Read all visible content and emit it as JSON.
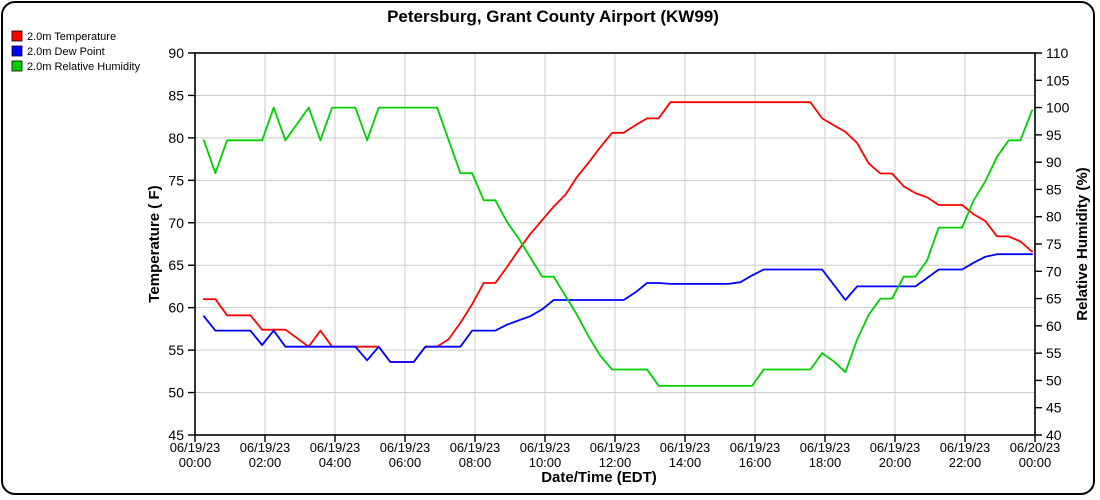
{
  "title": "Petersburg, Grant County Airport (KW99)",
  "legend": [
    {
      "key": "temperature",
      "label": "2.0m Temperature",
      "color": "#ff0000"
    },
    {
      "key": "dew-point",
      "label": "2.0m Dew Point",
      "color": "#0000ff"
    },
    {
      "key": "relative-humidity",
      "label": "2.0m Relative Humidity",
      "color": "#00d000"
    }
  ],
  "colors": {
    "temperature": "#ff0000",
    "dew_point": "#0000ff",
    "relative_humidity": "#00d000",
    "gridline": "#cccccc",
    "frame": "#000000"
  },
  "chart_data": {
    "type": "line",
    "title": "Petersburg, Grant County Airport (KW99)",
    "xlabel": "Date/Time (EDT)",
    "ylabel_left": "Temperature ( F)",
    "ylabel_right": "Relative Humidity (%)",
    "grid": true,
    "legend_position": "top-left",
    "y_left": {
      "min": 45,
      "max": 90,
      "step": 5
    },
    "y_right": {
      "min": 40,
      "max": 110,
      "step": 5
    },
    "x_range_hours": [
      0,
      24
    ],
    "x_tick_step_hours": 2,
    "x_ticks": [
      {
        "date": "06/19/23",
        "time": "00:00"
      },
      {
        "date": "06/19/23",
        "time": "02:00"
      },
      {
        "date": "06/19/23",
        "time": "04:00"
      },
      {
        "date": "06/19/23",
        "time": "06:00"
      },
      {
        "date": "06/19/23",
        "time": "08:00"
      },
      {
        "date": "06/19/23",
        "time": "10:00"
      },
      {
        "date": "06/19/23",
        "time": "12:00"
      },
      {
        "date": "06/19/23",
        "time": "14:00"
      },
      {
        "date": "06/19/23",
        "time": "16:00"
      },
      {
        "date": "06/19/23",
        "time": "18:00"
      },
      {
        "date": "06/19/23",
        "time": "20:00"
      },
      {
        "date": "06/19/23",
        "time": "22:00"
      },
      {
        "date": "06/20/23",
        "time": "00:00"
      }
    ],
    "x_start_hour": 0.25,
    "x_step_hours": 0.333333,
    "series": [
      {
        "name": "2.0m Temperature",
        "key": "temperature",
        "axis": "left",
        "color": "#ff0000",
        "values": [
          61,
          61,
          59.1,
          59.1,
          59.1,
          57.4,
          57.4,
          57.4,
          56.4,
          55.4,
          57.3,
          55.4,
          55.4,
          55.4,
          55.4,
          55.4,
          53.6,
          53.6,
          53.6,
          55.4,
          55.4,
          56.3,
          58.2,
          60.4,
          62.9,
          62.9,
          64.8,
          66.8,
          68.7,
          70.3,
          71.9,
          73.3,
          75.4,
          77.1,
          78.9,
          80.6,
          80.6,
          81.5,
          82.3,
          82.3,
          84.2,
          84.2,
          84.2,
          84.2,
          84.2,
          84.2,
          84.2,
          84.2,
          84.2,
          84.2,
          84.2,
          84.2,
          84.2,
          82.3,
          81.5,
          80.7,
          79.4,
          77,
          75.8,
          75.8,
          74.3,
          73.5,
          73,
          72.1,
          72.1,
          72.1,
          71,
          70.2,
          68.4,
          68.4,
          67.8,
          66.6
        ]
      },
      {
        "name": "2.0m Dew Point",
        "key": "dew-point",
        "axis": "left",
        "color": "#0000ff",
        "values": [
          59,
          57.3,
          57.3,
          57.3,
          57.3,
          55.6,
          57.3,
          55.4,
          55.4,
          55.4,
          55.4,
          55.4,
          55.4,
          55.4,
          53.8,
          55.4,
          53.6,
          53.6,
          53.6,
          55.4,
          55.4,
          55.4,
          55.4,
          57.3,
          57.3,
          57.3,
          58,
          58.5,
          59,
          59.8,
          60.9,
          60.9,
          60.9,
          60.9,
          60.9,
          60.9,
          60.9,
          61.8,
          62.9,
          62.9,
          62.8,
          62.8,
          62.8,
          62.8,
          62.8,
          62.8,
          63,
          63.8,
          64.5,
          64.5,
          64.5,
          64.5,
          64.5,
          64.5,
          62.7,
          60.9,
          62.5,
          62.5,
          62.5,
          62.5,
          62.5,
          62.5,
          63.5,
          64.5,
          64.5,
          64.5,
          65.3,
          66,
          66.3,
          66.3,
          66.3,
          66.3
        ]
      },
      {
        "name": "2.0m Relative Humidity",
        "key": "relative-humidity",
        "axis": "right",
        "color": "#00d000",
        "values": [
          94,
          88,
          94,
          94,
          94,
          94,
          100,
          94,
          97,
          100,
          94,
          100,
          100,
          100,
          94,
          100,
          100,
          100,
          100,
          100,
          100,
          94,
          88,
          88,
          83,
          83,
          79,
          76,
          72.5,
          69,
          69,
          65.5,
          62,
          58,
          54.5,
          52,
          52,
          52,
          52,
          49,
          49,
          49,
          49,
          49,
          49,
          49,
          49,
          49,
          52,
          52,
          52,
          52,
          52,
          55,
          53.5,
          51.5,
          57.5,
          62,
          65,
          65,
          69,
          69,
          72,
          78,
          78,
          78,
          83,
          86.5,
          91,
          94,
          94,
          99.5
        ]
      }
    ]
  }
}
